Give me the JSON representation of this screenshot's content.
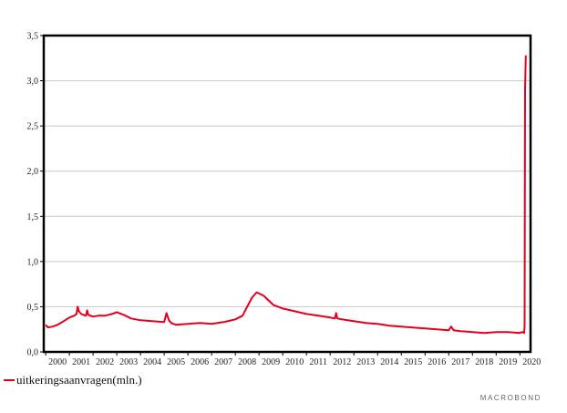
{
  "chart_data": {
    "type": "line",
    "title": "",
    "xlabel": "",
    "ylabel": "",
    "xlim": [
      1999.92,
      2020.45
    ],
    "ylim": [
      0,
      3.5
    ],
    "yticks": [
      0,
      0.5,
      1.0,
      1.5,
      2.0,
      2.5,
      3.0,
      3.5
    ],
    "ytick_labels": [
      "0,0",
      "0,5",
      "1,0",
      "1,5",
      "2,0",
      "2,5",
      "3,0",
      "3,5"
    ],
    "xticks": [
      "2000",
      "2001",
      "2002",
      "2003",
      "2004",
      "2005",
      "2006",
      "2007",
      "2008",
      "2009",
      "2010",
      "2011",
      "2012",
      "2013",
      "2014",
      "2015",
      "2016",
      "2017",
      "2018",
      "2019",
      "2020"
    ],
    "grid": "horizontal",
    "legend_position": "bottom-left",
    "color": "#e3001b",
    "series": [
      {
        "name": "uitkeringsaanvragen(mln.)",
        "x": [
          2000.0,
          2000.1,
          2000.3,
          2000.5,
          2000.7,
          2001.0,
          2001.2,
          2001.3,
          2001.35,
          2001.4,
          2001.5,
          2001.7,
          2001.75,
          2001.8,
          2002.0,
          2002.2,
          2002.5,
          2002.8,
          2003.0,
          2003.3,
          2003.6,
          2004.0,
          2004.5,
          2005.0,
          2005.1,
          2005.2,
          2005.3,
          2005.5,
          2006.0,
          2006.5,
          2007.0,
          2007.5,
          2008.0,
          2008.3,
          2008.5,
          2008.7,
          2008.9,
          2009.2,
          2009.4,
          2009.6,
          2010.0,
          2010.5,
          2011.0,
          2011.5,
          2012.0,
          2012.2,
          2012.25,
          2012.3,
          2012.5,
          2013.0,
          2013.5,
          2014.0,
          2014.5,
          2015.0,
          2015.5,
          2016.0,
          2016.5,
          2017.0,
          2017.1,
          2017.2,
          2017.5,
          2018.0,
          2018.5,
          2019.0,
          2019.5,
          2020.0,
          2020.1,
          2020.18,
          2020.2,
          2020.22,
          2020.25
        ],
        "values": [
          0.3,
          0.27,
          0.28,
          0.3,
          0.33,
          0.38,
          0.4,
          0.42,
          0.5,
          0.45,
          0.42,
          0.4,
          0.46,
          0.41,
          0.39,
          0.4,
          0.4,
          0.42,
          0.44,
          0.41,
          0.37,
          0.35,
          0.34,
          0.33,
          0.43,
          0.35,
          0.32,
          0.3,
          0.31,
          0.32,
          0.31,
          0.33,
          0.36,
          0.4,
          0.5,
          0.6,
          0.66,
          0.62,
          0.57,
          0.52,
          0.48,
          0.45,
          0.42,
          0.4,
          0.38,
          0.37,
          0.43,
          0.37,
          0.36,
          0.34,
          0.32,
          0.31,
          0.29,
          0.28,
          0.27,
          0.26,
          0.25,
          0.24,
          0.28,
          0.24,
          0.23,
          0.22,
          0.21,
          0.22,
          0.22,
          0.21,
          0.22,
          0.21,
          0.28,
          2.9,
          3.28
        ]
      }
    ]
  },
  "brand": "MACROBOND"
}
